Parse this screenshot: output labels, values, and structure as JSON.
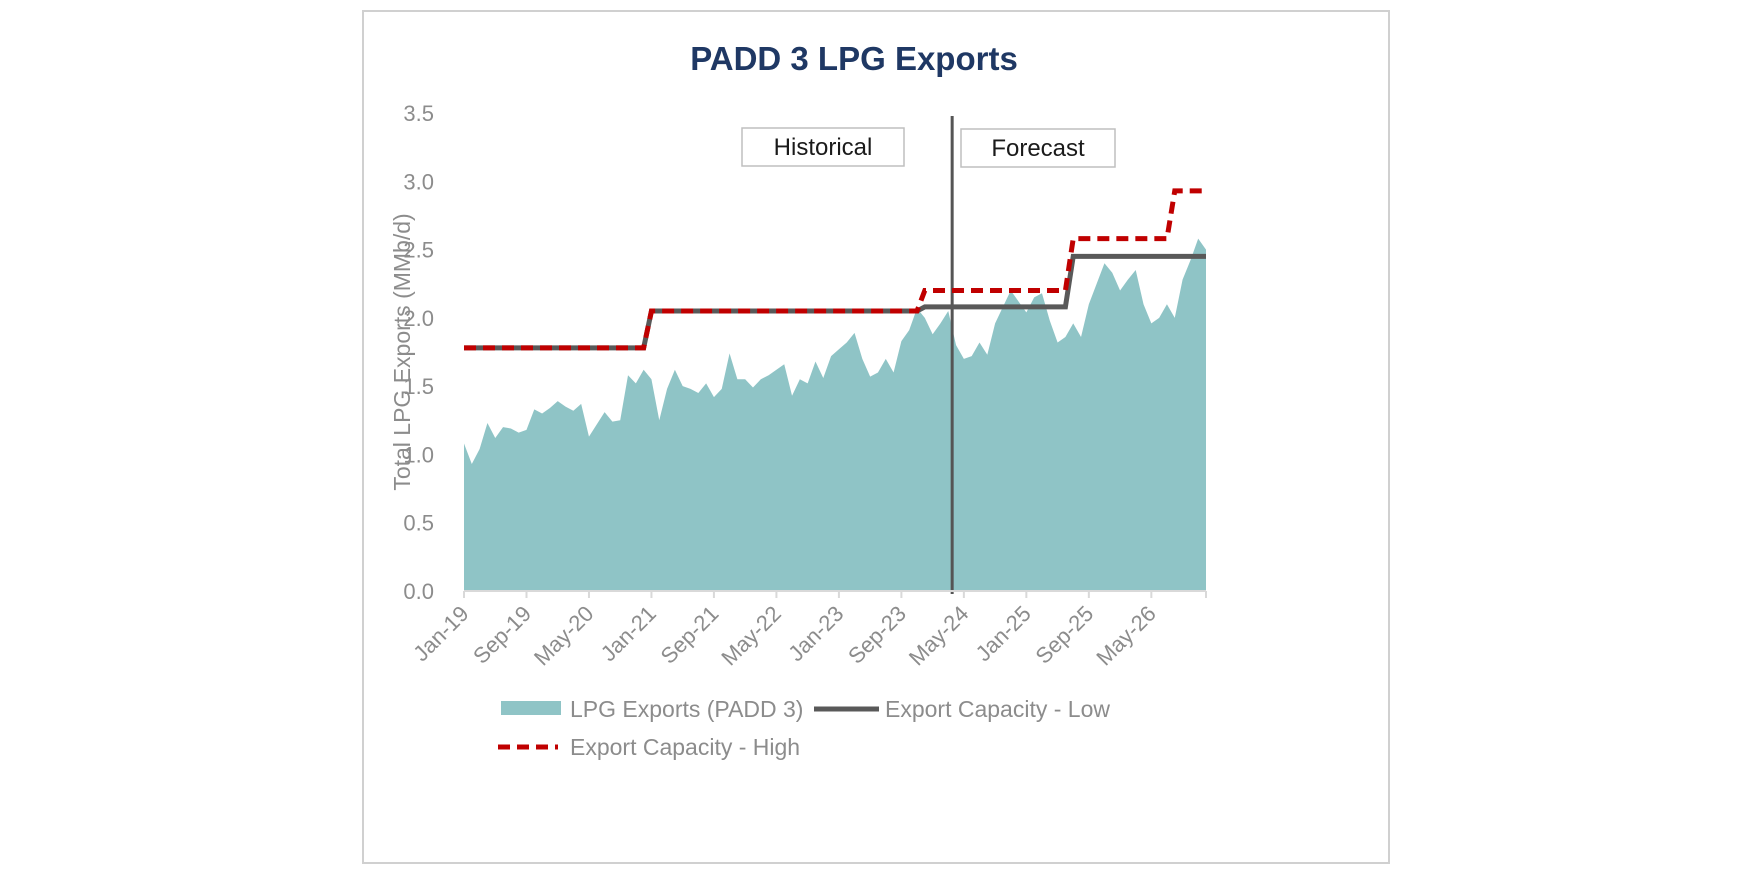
{
  "chart_data": {
    "type": "area",
    "title": "PADD 3 LPG Exports",
    "xlabel": "",
    "ylabel": "Total LPG Exports (MMb/d)",
    "ylim": [
      0,
      3.5
    ],
    "yticks": [
      "0.0",
      "0.5",
      "1.0",
      "1.5",
      "2.0",
      "2.5",
      "3.0",
      "3.5"
    ],
    "x_start": "Jan-19",
    "x_end": "Dec-26",
    "xticks": [
      "Jan-19",
      "Sep-19",
      "May-20",
      "Jan-21",
      "Sep-21",
      "May-22",
      "Jan-23",
      "Sep-23",
      "May-24",
      "Jan-25",
      "Sep-25",
      "May-26"
    ],
    "divider_month": "Mar-24",
    "annotations": [
      "Historical",
      "Forecast"
    ],
    "grid": false,
    "legend_position": "bottom",
    "series": [
      {
        "name": "LPG Exports (PADD 3)",
        "type": "area",
        "color": "#8fc4c6",
        "values": [
          1.08,
          0.93,
          1.04,
          1.23,
          1.12,
          1.2,
          1.19,
          1.16,
          1.18,
          1.33,
          1.3,
          1.34,
          1.39,
          1.35,
          1.32,
          1.37,
          1.13,
          1.22,
          1.31,
          1.24,
          1.25,
          1.58,
          1.52,
          1.62,
          1.55,
          1.25,
          1.48,
          1.62,
          1.5,
          1.48,
          1.45,
          1.52,
          1.42,
          1.48,
          1.74,
          1.55,
          1.55,
          1.49,
          1.55,
          1.58,
          1.62,
          1.66,
          1.43,
          1.55,
          1.52,
          1.68,
          1.56,
          1.72,
          1.77,
          1.82,
          1.89,
          1.7,
          1.57,
          1.6,
          1.7,
          1.6,
          1.83,
          1.91,
          2.07,
          2.0,
          1.88,
          1.96,
          2.05,
          1.8,
          1.7,
          1.72,
          1.82,
          1.73,
          1.96,
          2.08,
          2.2,
          2.12,
          2.04,
          2.15,
          2.18,
          1.98,
          1.82,
          1.86,
          1.96,
          1.86,
          2.1,
          2.25,
          2.4,
          2.33,
          2.2,
          2.28,
          2.35,
          2.1,
          1.96,
          2.0,
          2.1,
          2.0,
          2.28,
          2.42,
          2.58,
          2.5
        ]
      },
      {
        "name": "Export Capacity - Low",
        "type": "line",
        "color": "#595959",
        "steps": [
          {
            "from": "Jan-19",
            "to": "Dec-20",
            "value": 1.78
          },
          {
            "from": "Jan-21",
            "to": "Nov-23",
            "value": 2.05
          },
          {
            "from": "Dec-23",
            "to": "Jun-25",
            "value": 2.08
          },
          {
            "from": "Jul-25",
            "to": "Dec-26",
            "value": 2.45
          }
        ]
      },
      {
        "name": "Export Capacity - High",
        "type": "line",
        "color": "#c00000",
        "steps": [
          {
            "from": "Jan-19",
            "to": "Dec-20",
            "value": 1.78
          },
          {
            "from": "Jan-21",
            "to": "Nov-23",
            "value": 2.05
          },
          {
            "from": "Dec-23",
            "to": "Jun-25",
            "value": 2.2
          },
          {
            "from": "Jul-25",
            "to": "Jul-26",
            "value": 2.58
          },
          {
            "from": "Aug-26",
            "to": "Dec-26",
            "value": 2.93
          }
        ]
      }
    ]
  }
}
